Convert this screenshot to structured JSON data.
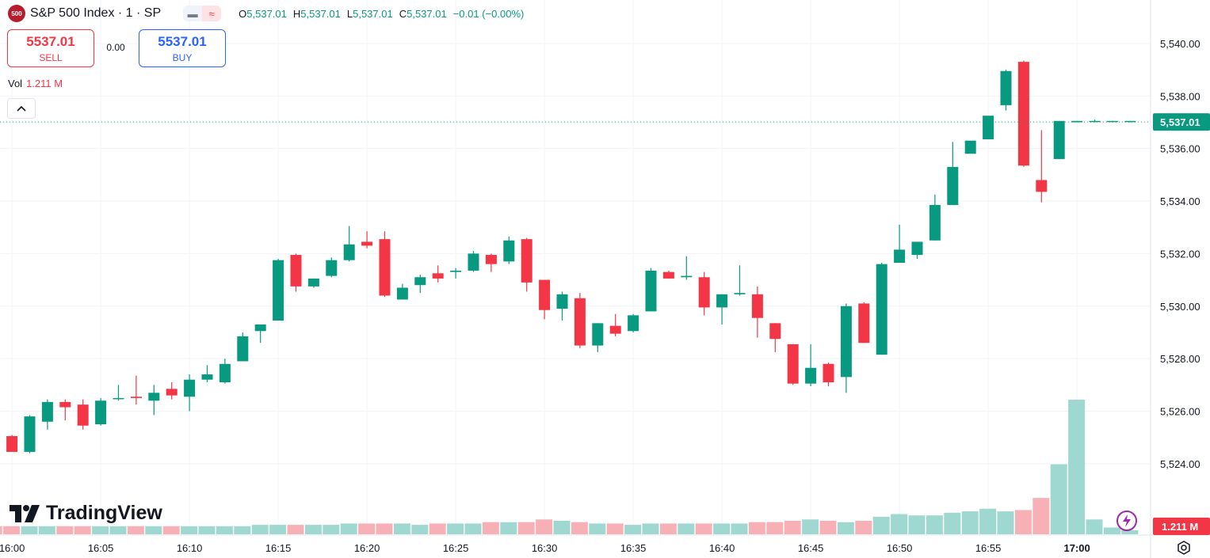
{
  "header": {
    "badge": "500",
    "title": "S&P 500 Index · 1 · SP",
    "pill_left": "▬",
    "pill_right": "≈",
    "ohlc": {
      "o_label": "O",
      "o_value": "5,537.01",
      "h_label": "H",
      "h_value": "5,537.01",
      "l_label": "L",
      "l_value": "5,537.01",
      "c_label": "C",
      "c_value": "5,537.01",
      "change": "−0.01 (−0.00%)"
    }
  },
  "trade": {
    "sell_price": "5537.01",
    "sell_label": "SELL",
    "spread": "0.00",
    "buy_price": "5537.01",
    "buy_label": "BUY"
  },
  "volume_legend": {
    "label": "Vol",
    "value": "1.211 M"
  },
  "collapse_icon": "chevron-up-icon",
  "logo_text": "TradingView",
  "colors": {
    "up": "#089981",
    "down": "#f23645",
    "vol_up": "#9ed8d0",
    "vol_down": "#f7b0b5",
    "accent": "#2962ff"
  },
  "chart_data": {
    "type": "candlestick",
    "interval": "1 minute",
    "x": [
      "15:59",
      "16:00",
      "16:01",
      "16:02",
      "16:03",
      "16:04",
      "16:05",
      "16:06",
      "16:07",
      "16:08",
      "16:09",
      "16:10",
      "16:11",
      "16:12",
      "16:13",
      "16:14",
      "16:15",
      "16:16",
      "16:17",
      "16:18",
      "16:19",
      "16:20",
      "16:21",
      "16:22",
      "16:23",
      "16:24",
      "16:25",
      "16:26",
      "16:27",
      "16:28",
      "16:29",
      "16:30",
      "16:31",
      "16:32",
      "16:33",
      "16:34",
      "16:35",
      "16:36",
      "16:37",
      "16:38",
      "16:39",
      "16:40",
      "16:41",
      "16:42",
      "16:43",
      "16:44",
      "16:45",
      "16:46",
      "16:47",
      "16:48",
      "16:49",
      "16:50",
      "16:51",
      "16:52",
      "16:53",
      "16:54",
      "16:55",
      "16:56",
      "16:57",
      "16:58",
      "16:59",
      "17:00",
      "17:01",
      "17:02",
      "17:03"
    ],
    "ohlc": [
      [
        5525.05,
        5525.1,
        5524.35,
        5525.0
      ],
      [
        5525.05,
        5525.1,
        5524.5,
        5524.45
      ],
      [
        5524.45,
        5525.85,
        5524.4,
        5525.8
      ],
      [
        5525.6,
        5526.45,
        5525.3,
        5526.35
      ],
      [
        5526.35,
        5526.45,
        5525.65,
        5526.15
      ],
      [
        5526.25,
        5526.45,
        5525.3,
        5525.45
      ],
      [
        5525.5,
        5526.5,
        5525.45,
        5526.4
      ],
      [
        5526.5,
        5527.0,
        5526.4,
        5526.5
      ],
      [
        5526.55,
        5527.35,
        5526.25,
        5526.5
      ],
      [
        5526.4,
        5527.0,
        5525.85,
        5526.7
      ],
      [
        5526.85,
        5527.1,
        5526.45,
        5526.6
      ],
      [
        5526.55,
        5527.4,
        5526.0,
        5527.2
      ],
      [
        5527.2,
        5527.75,
        5527.1,
        5527.4
      ],
      [
        5527.1,
        5528.0,
        5527.05,
        5527.8
      ],
      [
        5527.9,
        5529.0,
        5527.9,
        5528.85
      ],
      [
        5529.05,
        5529.3,
        5528.6,
        5529.3
      ],
      [
        5529.45,
        5531.8,
        5529.45,
        5531.75
      ],
      [
        5531.95,
        5532.0,
        5530.55,
        5530.75
      ],
      [
        5530.75,
        5531.05,
        5530.7,
        5531.05
      ],
      [
        5531.15,
        5531.85,
        5531.1,
        5531.75
      ],
      [
        5531.75,
        5533.05,
        5531.7,
        5532.35
      ],
      [
        5532.45,
        5532.85,
        5532.2,
        5532.3
      ],
      [
        5532.55,
        5532.85,
        5530.35,
        5530.4
      ],
      [
        5530.25,
        5530.85,
        5530.25,
        5530.7
      ],
      [
        5530.8,
        5531.2,
        5530.5,
        5531.1
      ],
      [
        5531.25,
        5531.55,
        5530.9,
        5531.05
      ],
      [
        5531.3,
        5531.45,
        5531.05,
        5531.35
      ],
      [
        5531.35,
        5532.1,
        5531.3,
        5532.0
      ],
      [
        5531.95,
        5532.0,
        5531.3,
        5531.6
      ],
      [
        5531.7,
        5532.65,
        5531.6,
        5532.5
      ],
      [
        5532.55,
        5532.6,
        5530.55,
        5530.9
      ],
      [
        5531.0,
        5531.0,
        5529.5,
        5529.85
      ],
      [
        5529.9,
        5530.55,
        5529.45,
        5530.45
      ],
      [
        5530.3,
        5530.5,
        5528.4,
        5528.5
      ],
      [
        5528.5,
        5529.35,
        5528.25,
        5529.35
      ],
      [
        5529.25,
        5529.7,
        5528.85,
        5528.95
      ],
      [
        5529.05,
        5529.7,
        5529.0,
        5529.65
      ],
      [
        5529.8,
        5531.45,
        5529.8,
        5531.35
      ],
      [
        5531.3,
        5531.35,
        5531.05,
        5531.05
      ],
      [
        5531.1,
        5531.9,
        5531.0,
        5531.15
      ],
      [
        5531.1,
        5531.3,
        5529.65,
        5529.95
      ],
      [
        5529.95,
        5530.45,
        5529.3,
        5530.45
      ],
      [
        5530.45,
        5531.55,
        5530.4,
        5530.5
      ],
      [
        5530.45,
        5530.75,
        5528.8,
        5529.55
      ],
      [
        5529.35,
        5529.35,
        5528.25,
        5528.75
      ],
      [
        5528.55,
        5528.55,
        5527.0,
        5527.05
      ],
      [
        5527.05,
        5528.55,
        5526.95,
        5527.65
      ],
      [
        5527.8,
        5527.85,
        5526.95,
        5527.1
      ],
      [
        5527.3,
        5530.1,
        5526.7,
        5530.0
      ],
      [
        5530.1,
        5530.15,
        5528.6,
        5528.6
      ],
      [
        5528.15,
        5531.65,
        5528.15,
        5531.6
      ],
      [
        5531.65,
        5533.1,
        5531.65,
        5532.15
      ],
      [
        5531.95,
        5532.45,
        5531.8,
        5532.45
      ],
      [
        5532.5,
        5534.25,
        5532.5,
        5533.85
      ],
      [
        5533.85,
        5536.25,
        5533.85,
        5535.3
      ],
      [
        5535.8,
        5536.2,
        5535.85,
        5536.3
      ],
      [
        5536.35,
        5537.2,
        5536.5,
        5537.25
      ],
      [
        5537.65,
        5539.0,
        5537.45,
        5538.95
      ],
      [
        5539.3,
        5539.35,
        5535.3,
        5535.35
      ],
      [
        5534.8,
        5536.7,
        5533.95,
        5534.35
      ],
      [
        5535.6,
        5537.05,
        5535.6,
        5537.05
      ],
      [
        5537.0,
        5537.05,
        5537.0,
        5537.05
      ],
      [
        5537.05,
        5537.1,
        5537.0,
        5537.05
      ],
      [
        5537.05,
        5537.05,
        5537.0,
        5537.05
      ],
      [
        5537.05,
        5537.05,
        5537.0,
        5537.05
      ]
    ],
    "volume_relative": [
      0.06,
      0.06,
      0.06,
      0.06,
      0.06,
      0.06,
      0.06,
      0.06,
      0.06,
      0.06,
      0.06,
      0.06,
      0.06,
      0.06,
      0.06,
      0.07,
      0.07,
      0.07,
      0.07,
      0.07,
      0.08,
      0.08,
      0.08,
      0.08,
      0.07,
      0.08,
      0.08,
      0.08,
      0.09,
      0.09,
      0.09,
      0.11,
      0.1,
      0.09,
      0.08,
      0.08,
      0.07,
      0.08,
      0.08,
      0.08,
      0.08,
      0.08,
      0.08,
      0.09,
      0.09,
      0.1,
      0.11,
      0.1,
      0.09,
      0.1,
      0.13,
      0.15,
      0.14,
      0.14,
      0.16,
      0.17,
      0.19,
      0.17,
      0.18,
      0.27,
      0.52,
      1.0,
      0.11,
      0.05,
      0.03
    ],
    "last_price": 5537.01,
    "last_volume": "1.211 M",
    "y_range": [
      5522.7,
      5540.6
    ],
    "y_ticks": [
      "5,524.00",
      "5,526.00",
      "5,528.00",
      "5,530.00",
      "5,532.00",
      "5,534.00",
      "5,536.00",
      "5,538.00",
      "5,540.00"
    ],
    "y_tick_values": [
      5524,
      5526,
      5528,
      5530,
      5532,
      5534,
      5536,
      5538,
      5540
    ],
    "x_ticks": [
      {
        "label": "16:00",
        "idx": 1
      },
      {
        "label": "16:05",
        "idx": 6
      },
      {
        "label": "16:10",
        "idx": 11
      },
      {
        "label": "16:15",
        "idx": 16
      },
      {
        "label": "16:20",
        "idx": 21
      },
      {
        "label": "16:25",
        "idx": 26
      },
      {
        "label": "16:30",
        "idx": 31
      },
      {
        "label": "16:35",
        "idx": 36
      },
      {
        "label": "16:40",
        "idx": 41
      },
      {
        "label": "16:45",
        "idx": 46
      },
      {
        "label": "16:50",
        "idx": 51
      },
      {
        "label": "16:55",
        "idx": 56
      },
      {
        "label": "17:00",
        "idx": 61
      }
    ],
    "last_price_label": "5,537.01",
    "grid": true
  }
}
